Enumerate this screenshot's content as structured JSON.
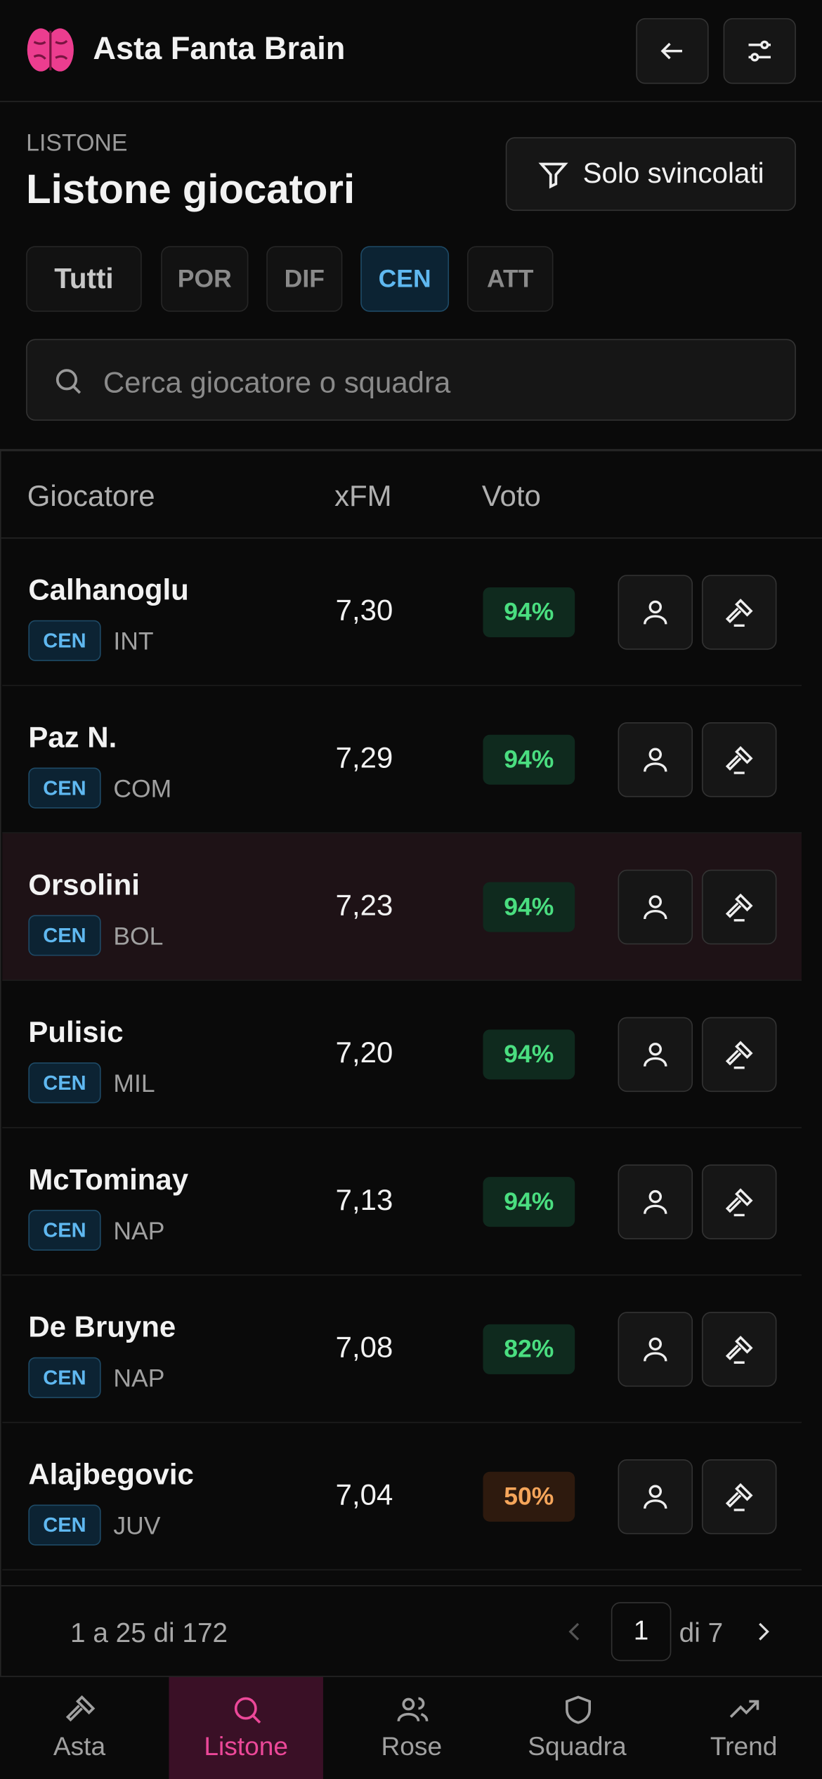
{
  "header": {
    "title": "Asta Fanta Brain"
  },
  "section": {
    "label": "LISTONE",
    "title": "Listone giocatori",
    "filter_button": "Solo svincolati"
  },
  "tabs": [
    "Tutti",
    "POR",
    "DIF",
    "CEN",
    "ATT"
  ],
  "search": {
    "placeholder": "Cerca giocatore o squadra"
  },
  "table": {
    "headers": [
      "Giocatore",
      "xFM",
      "Voto"
    ],
    "rows": [
      {
        "name": "Calhanoglu",
        "role": "CEN",
        "team": "INT",
        "xfm": "7,30",
        "voto": "94%"
      },
      {
        "name": "Paz N.",
        "role": "CEN",
        "team": "COM",
        "xfm": "7,29",
        "voto": "94%"
      },
      {
        "name": "Orsolini",
        "role": "CEN",
        "team": "BOL",
        "xfm": "7,23",
        "voto": "94%"
      },
      {
        "name": "Pulisic",
        "role": "CEN",
        "team": "MIL",
        "xfm": "7,20",
        "voto": "94%"
      },
      {
        "name": "McTominay",
        "role": "CEN",
        "team": "NAP",
        "xfm": "7,13",
        "voto": "94%"
      },
      {
        "name": "De Bruyne",
        "role": "CEN",
        "team": "NAP",
        "xfm": "7,08",
        "voto": "82%"
      },
      {
        "name": "Alajbegovic",
        "role": "CEN",
        "team": "JUV",
        "xfm": "7,04",
        "voto": "50%"
      }
    ]
  },
  "pagination": {
    "range": "1 a 25 di 172",
    "page": "1",
    "total": "di 7"
  },
  "nav": [
    "Asta",
    "Listone",
    "Rose",
    "Squadra",
    "Trend"
  ]
}
